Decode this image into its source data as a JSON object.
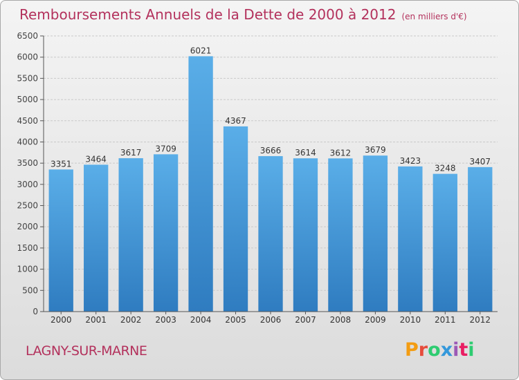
{
  "header": {
    "title": "Remboursements Annuels de la Dette de 2000 à 2012",
    "subtitle": "(en milliers d'€)"
  },
  "footer": {
    "commune": "LAGNY-SUR-MARNE",
    "brand": [
      "P",
      "r",
      "o",
      "x",
      "i",
      "t",
      "i"
    ]
  },
  "colors": {
    "bar_top": "#5aaee8",
    "bar_bottom": "#2f7cc0",
    "text_accent": "#b3315c",
    "brand": [
      "#f39c12",
      "#e74c3c",
      "#2ecc71",
      "#3498db",
      "#9b59b6",
      "#e91e63",
      "#2ecc71"
    ]
  },
  "chart_data": {
    "type": "bar",
    "categories": [
      "2000",
      "2001",
      "2002",
      "2003",
      "2004",
      "2005",
      "2006",
      "2007",
      "2008",
      "2009",
      "2010",
      "2011",
      "2012"
    ],
    "values": [
      3351,
      3464,
      3617,
      3709,
      6021,
      4367,
      3666,
      3614,
      3612,
      3679,
      3423,
      3248,
      3407
    ],
    "ylim": [
      0,
      6500
    ],
    "yticks": [
      0,
      500,
      1000,
      1500,
      2000,
      2500,
      3000,
      3500,
      4000,
      4500,
      5000,
      5500,
      6000,
      6500
    ],
    "grid": true,
    "data_labels": true
  }
}
